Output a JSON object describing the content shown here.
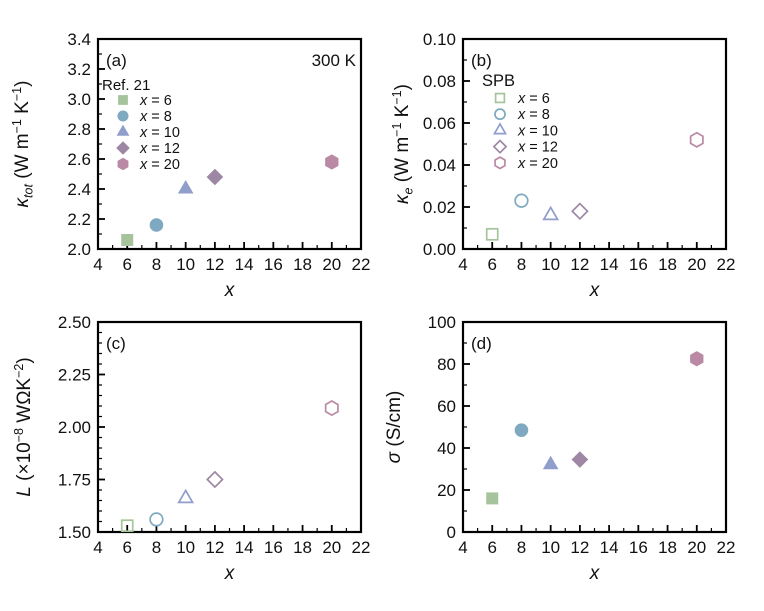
{
  "figure": {
    "background": "#ffffff",
    "axis_color": "#000000",
    "text_color": "#111111"
  },
  "chart_data": [
    {
      "id": "a",
      "type": "scatter",
      "panel_label": "(a)",
      "annotation": "300 K",
      "legend": {
        "title": "Ref. 21",
        "items": [
          {
            "marker": "square",
            "color": "#a5c49c",
            "filled": true,
            "label": [
              {
                "t": "x",
                "i": true
              },
              {
                "t": " = 6"
              }
            ]
          },
          {
            "marker": "circle",
            "color": "#7ea9c1",
            "filled": true,
            "label": [
              {
                "t": "x",
                "i": true
              },
              {
                "t": " = 8"
              }
            ]
          },
          {
            "marker": "triangle",
            "color": "#8f9ecb",
            "filled": true,
            "label": [
              {
                "t": "x",
                "i": true
              },
              {
                "t": " = 10"
              }
            ]
          },
          {
            "marker": "diamond",
            "color": "#9e87a4",
            "filled": true,
            "label": [
              {
                "t": "x",
                "i": true
              },
              {
                "t": " = 12"
              }
            ]
          },
          {
            "marker": "hexagon",
            "color": "#ba89a4",
            "filled": true,
            "label": [
              {
                "t": "x",
                "i": true
              },
              {
                "t": " = 20"
              }
            ]
          }
        ]
      },
      "xlabel": [
        {
          "t": "x",
          "i": true
        }
      ],
      "ylabel": [
        {
          "t": "κ",
          "i": true
        },
        {
          "t": "tot",
          "i": true,
          "sub": true
        },
        {
          "t": " (W m"
        },
        {
          "t": "−1",
          "sup": true
        },
        {
          "t": " K"
        },
        {
          "t": "−1",
          "sup": true
        },
        {
          "t": ")"
        }
      ],
      "xlim": [
        4,
        22
      ],
      "ylim": [
        2.0,
        3.4
      ],
      "xticks": {
        "values": [
          4,
          6,
          8,
          10,
          12,
          14,
          16,
          18,
          20,
          22
        ],
        "labels": [
          "4",
          "6",
          "8",
          "10",
          "12",
          "14",
          "16",
          "18",
          "20",
          "22"
        ],
        "minor_step": 1
      },
      "yticks": {
        "values": [
          2.0,
          2.2,
          2.4,
          2.6,
          2.8,
          3.0,
          3.2,
          3.4
        ],
        "labels": [
          "2.0",
          "2.2",
          "2.4",
          "2.6",
          "2.8",
          "3.0",
          "3.2",
          "3.4"
        ],
        "minor_step": 0.1
      },
      "points": [
        {
          "x": 6,
          "y": 2.06,
          "marker": "square",
          "color": "#a5c49c",
          "filled": true
        },
        {
          "x": 8,
          "y": 2.16,
          "marker": "circle",
          "color": "#7ea9c1",
          "filled": true
        },
        {
          "x": 10,
          "y": 2.4,
          "marker": "triangle",
          "color": "#8f9ecb",
          "filled": true
        },
        {
          "x": 12,
          "y": 2.48,
          "marker": "diamond",
          "color": "#9e87a4",
          "filled": true
        },
        {
          "x": 20,
          "y": 2.58,
          "marker": "hexagon",
          "color": "#ba89a4",
          "filled": true
        }
      ]
    },
    {
      "id": "b",
      "type": "scatter",
      "panel_label": "(b)",
      "annotation": "",
      "legend": {
        "title": "SPB",
        "items": [
          {
            "marker": "square",
            "color": "#a5c49c",
            "filled": false,
            "label": [
              {
                "t": "x",
                "i": true
              },
              {
                "t": " = 6"
              }
            ]
          },
          {
            "marker": "circle",
            "color": "#7ea9c1",
            "filled": false,
            "label": [
              {
                "t": "x",
                "i": true
              },
              {
                "t": " = 8"
              }
            ]
          },
          {
            "marker": "triangle",
            "color": "#8f9ecb",
            "filled": false,
            "label": [
              {
                "t": "x",
                "i": true
              },
              {
                "t": " = 10"
              }
            ]
          },
          {
            "marker": "diamond",
            "color": "#9e87a4",
            "filled": false,
            "label": [
              {
                "t": "x",
                "i": true
              },
              {
                "t": " = 12"
              }
            ]
          },
          {
            "marker": "hexagon",
            "color": "#ba89a4",
            "filled": false,
            "label": [
              {
                "t": "x",
                "i": true
              },
              {
                "t": " = 20"
              }
            ]
          }
        ]
      },
      "xlabel": [
        {
          "t": "x",
          "i": true
        }
      ],
      "ylabel": [
        {
          "t": "κ",
          "i": true
        },
        {
          "t": "e",
          "i": true,
          "sub": true
        },
        {
          "t": " (W m"
        },
        {
          "t": "−1",
          "sup": true
        },
        {
          "t": " K"
        },
        {
          "t": "−1",
          "sup": true
        },
        {
          "t": ")"
        }
      ],
      "xlim": [
        4,
        22
      ],
      "ylim": [
        0.0,
        0.1
      ],
      "xticks": {
        "values": [
          4,
          6,
          8,
          10,
          12,
          14,
          16,
          18,
          20,
          22
        ],
        "labels": [
          "4",
          "6",
          "8",
          "10",
          "12",
          "14",
          "16",
          "18",
          "20",
          "22"
        ],
        "minor_step": 1
      },
      "yticks": {
        "values": [
          0.0,
          0.02,
          0.04,
          0.06,
          0.08,
          0.1
        ],
        "labels": [
          "0.00",
          "0.02",
          "0.04",
          "0.06",
          "0.08",
          "0.10"
        ],
        "minor_step": 0.01
      },
      "points": [
        {
          "x": 6,
          "y": 0.007,
          "marker": "square",
          "color": "#a5c49c",
          "filled": false
        },
        {
          "x": 8,
          "y": 0.023,
          "marker": "circle",
          "color": "#7ea9c1",
          "filled": false
        },
        {
          "x": 10,
          "y": 0.016,
          "marker": "triangle",
          "color": "#8f9ecb",
          "filled": false
        },
        {
          "x": 12,
          "y": 0.018,
          "marker": "diamond",
          "color": "#9e87a4",
          "filled": false
        },
        {
          "x": 20,
          "y": 0.052,
          "marker": "hexagon",
          "color": "#ba89a4",
          "filled": false
        }
      ]
    },
    {
      "id": "c",
      "type": "scatter",
      "panel_label": "(c)",
      "annotation": "",
      "legend": null,
      "xlabel": [
        {
          "t": "x",
          "i": true
        }
      ],
      "ylabel": [
        {
          "t": "L",
          "i": true
        },
        {
          "t": " (×10"
        },
        {
          "t": "−8",
          "sup": true
        },
        {
          "t": " WΩK"
        },
        {
          "t": "−2",
          "sup": true
        },
        {
          "t": ")"
        }
      ],
      "xlim": [
        4,
        22
      ],
      "ylim": [
        1.5,
        2.5
      ],
      "xticks": {
        "values": [
          4,
          6,
          8,
          10,
          12,
          14,
          16,
          18,
          20,
          22
        ],
        "labels": [
          "4",
          "6",
          "8",
          "10",
          "12",
          "14",
          "16",
          "18",
          "20",
          "22"
        ],
        "minor_step": 1
      },
      "yticks": {
        "values": [
          1.5,
          1.75,
          2.0,
          2.25,
          2.5
        ],
        "labels": [
          "1.50",
          "1.75",
          "2.00",
          "2.25",
          "2.50"
        ],
        "minor_step": 0.05
      },
      "points": [
        {
          "x": 6,
          "y": 1.53,
          "marker": "square",
          "color": "#a5c49c",
          "filled": false
        },
        {
          "x": 8,
          "y": 1.56,
          "marker": "circle",
          "color": "#7ea9c1",
          "filled": false
        },
        {
          "x": 10,
          "y": 1.66,
          "marker": "triangle",
          "color": "#8f9ecb",
          "filled": false
        },
        {
          "x": 12,
          "y": 1.75,
          "marker": "diamond",
          "color": "#9e87a4",
          "filled": false
        },
        {
          "x": 20,
          "y": 2.09,
          "marker": "hexagon",
          "color": "#ba89a4",
          "filled": false
        }
      ]
    },
    {
      "id": "d",
      "type": "scatter",
      "panel_label": "(d)",
      "annotation": "",
      "legend": null,
      "xlabel": [
        {
          "t": "x",
          "i": true
        }
      ],
      "ylabel": [
        {
          "t": "σ",
          "i": true
        },
        {
          "t": " (S/cm)"
        }
      ],
      "xlim": [
        4,
        22
      ],
      "ylim": [
        0,
        100
      ],
      "xticks": {
        "values": [
          4,
          6,
          8,
          10,
          12,
          14,
          16,
          18,
          20,
          22
        ],
        "labels": [
          "4",
          "6",
          "8",
          "10",
          "12",
          "14",
          "16",
          "18",
          "20",
          "22"
        ],
        "minor_step": 1
      },
      "yticks": {
        "values": [
          0,
          20,
          40,
          60,
          80,
          100
        ],
        "labels": [
          "0",
          "20",
          "40",
          "60",
          "80",
          "100"
        ],
        "minor_step": 10
      },
      "points": [
        {
          "x": 6,
          "y": 16,
          "marker": "square",
          "color": "#a5c49c",
          "filled": true
        },
        {
          "x": 8,
          "y": 48.5,
          "marker": "circle",
          "color": "#7ea9c1",
          "filled": true
        },
        {
          "x": 10,
          "y": 32,
          "marker": "triangle",
          "color": "#8f9ecb",
          "filled": true
        },
        {
          "x": 12,
          "y": 34.5,
          "marker": "diamond",
          "color": "#9e87a4",
          "filled": true
        },
        {
          "x": 20,
          "y": 82.5,
          "marker": "hexagon",
          "color": "#ba89a4",
          "filled": true
        }
      ]
    }
  ]
}
